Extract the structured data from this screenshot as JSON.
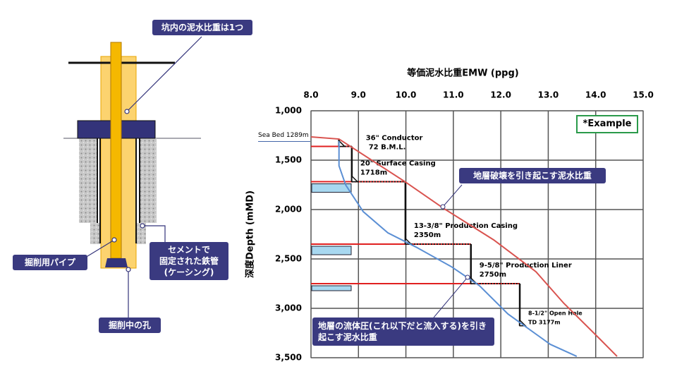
{
  "diagram": {
    "labels": {
      "mud": "坑内の泥水比重は1つ",
      "pipe": "掘削用パイプ",
      "casing": [
        "セメントで",
        "固定された鉄管",
        "(ケーシング)"
      ],
      "hole": "掘削中の孔"
    }
  },
  "chart_data": {
    "type": "line",
    "title": "等価泥水比重EMW (ppg)",
    "y_label": "深度Depth (mMD)",
    "badge": "*Example",
    "xlim": [
      8,
      15
    ],
    "xticks": [
      {
        "value": 8,
        "label": "8.0"
      },
      {
        "value": 9,
        "label": "9.0"
      },
      {
        "value": 10,
        "label": "10.0"
      },
      {
        "value": 11,
        "label": "11.0"
      },
      {
        "value": 12,
        "label": "12.0"
      },
      {
        "value": 13,
        "label": "13.0"
      },
      {
        "value": 14,
        "label": "14.0"
      },
      {
        "value": 15,
        "label": "15.0"
      }
    ],
    "ylim": [
      1000,
      3500
    ],
    "yticks": [
      {
        "value": 1000,
        "label": "1,000"
      },
      {
        "value": 1500,
        "label": "1,500"
      },
      {
        "value": 2000,
        "label": "2,000"
      },
      {
        "value": 2500,
        "label": "2,500"
      },
      {
        "value": 3000,
        "label": "3,000"
      },
      {
        "value": 3500,
        "label": "3,500"
      }
    ],
    "grid": true,
    "seabed": {
      "value": 1289,
      "label": "Sea Bed 1289m"
    },
    "series": [
      {
        "name": "地層破壊を引き起こす泥水比重",
        "color": "#d9534f",
        "x": [
          8.0,
          8.59,
          9.99,
          10.81,
          11.85,
          12.74,
          13.33,
          14.08,
          14.45
        ],
        "values": [
          1264,
          1286,
          1721,
          1993,
          2307,
          2629,
          2950,
          3307,
          3486
        ]
      },
      {
        "name": "地層の流体圧(これ以下だと流入する)を引き起こす泥水比重",
        "color": "#5b8fd4",
        "x": [
          8.59,
          8.59,
          8.73,
          9.1,
          9.62,
          10.21,
          10.96,
          11.55,
          12.15,
          13.04,
          13.6
        ],
        "values": [
          1307,
          1557,
          1750,
          2021,
          2236,
          2379,
          2579,
          2771,
          3057,
          3364,
          3486
        ]
      }
    ],
    "casings": [
      {
        "name": "36\" Conductor",
        "bml": {
          "value": 72,
          "label": "72 B.M.L."
        },
        "mw": 8.59
      },
      {
        "name": "20\" Surface  Casing",
        "depth": 1718,
        "depth_label": "1718m",
        "mw": 8.86
      },
      {
        "name": "13-3/8\" Production  Casing",
        "depth": 2350,
        "depth_label": "2350m",
        "mw": 9.99
      },
      {
        "name": "9-5/8\" Production  Liner",
        "depth": 2750,
        "depth_label": "2750m",
        "mw": 11.37
      },
      {
        "name": "8-1/2\" Open Hole",
        "depth": 3177,
        "depth_label": "TD 3177m",
        "mw": 12.4
      }
    ]
  }
}
